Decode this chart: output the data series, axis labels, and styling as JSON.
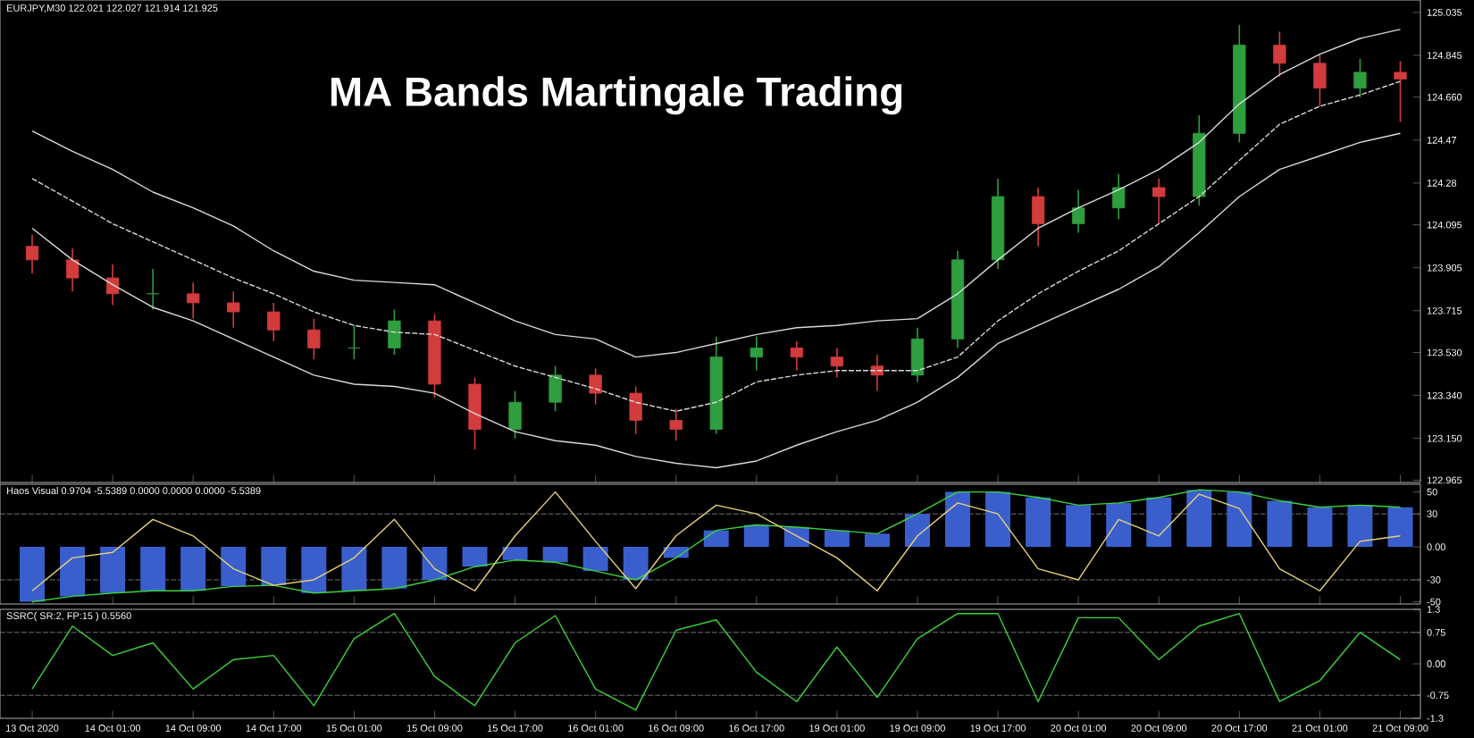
{
  "chart_data": [
    {
      "type": "candlestick",
      "title": "MA  Bands Martingale Trading",
      "annotations": [
        "EURJPY,M30 122.021 122.027 121.914 121.925"
      ],
      "categories": [
        null,
        null,
        null,
        null,
        null,
        null,
        null,
        null,
        null,
        null,
        null,
        null,
        null,
        null,
        null,
        null,
        null,
        null,
        null,
        null,
        null,
        null,
        null,
        null,
        null,
        null,
        null,
        null,
        null,
        null,
        null,
        null,
        null,
        null,
        null
      ],
      "ohlc": [
        [
          124.0,
          124.05,
          123.88,
          123.94
        ],
        [
          123.94,
          123.99,
          123.8,
          123.86
        ],
        [
          123.86,
          123.92,
          123.74,
          123.79
        ],
        [
          123.79,
          123.9,
          123.72,
          123.79
        ],
        [
          123.79,
          123.84,
          123.68,
          123.75
        ],
        [
          123.75,
          123.8,
          123.64,
          123.71
        ],
        [
          123.71,
          123.75,
          123.58,
          123.63
        ],
        [
          123.63,
          123.68,
          123.5,
          123.55
        ],
        [
          123.55,
          123.65,
          123.5,
          123.55
        ],
        [
          123.55,
          123.72,
          123.52,
          123.67
        ],
        [
          123.67,
          123.7,
          123.33,
          123.39
        ],
        [
          123.39,
          123.42,
          123.1,
          123.19
        ],
        [
          123.19,
          123.36,
          123.15,
          123.31
        ],
        [
          123.31,
          123.47,
          123.27,
          123.43
        ],
        [
          123.43,
          123.46,
          123.3,
          123.35
        ],
        [
          123.35,
          123.38,
          123.17,
          123.23
        ],
        [
          123.23,
          123.28,
          123.14,
          123.19
        ],
        [
          123.19,
          123.6,
          123.17,
          123.51
        ],
        [
          123.51,
          123.6,
          123.45,
          123.55
        ],
        [
          123.55,
          123.58,
          123.45,
          123.51
        ],
        [
          123.51,
          123.55,
          123.42,
          123.47
        ],
        [
          123.47,
          123.52,
          123.36,
          123.43
        ],
        [
          123.43,
          123.64,
          123.4,
          123.59
        ],
        [
          123.59,
          123.98,
          123.55,
          123.94
        ],
        [
          123.94,
          124.3,
          123.9,
          124.22
        ],
        [
          124.22,
          124.26,
          124.0,
          124.1
        ],
        [
          124.1,
          124.25,
          124.06,
          124.17
        ],
        [
          124.17,
          124.32,
          124.12,
          124.26
        ],
        [
          124.26,
          124.3,
          124.1,
          124.22
        ],
        [
          124.22,
          124.58,
          124.18,
          124.5
        ],
        [
          124.5,
          124.98,
          124.46,
          124.89
        ],
        [
          124.89,
          124.95,
          124.75,
          124.81
        ],
        [
          124.81,
          124.85,
          124.62,
          124.7
        ],
        [
          124.7,
          124.83,
          124.66,
          124.77
        ],
        [
          124.77,
          124.82,
          124.55,
          124.74
        ]
      ],
      "colors": [
        "#d23c3c",
        "#d23c3c",
        "#d23c3c",
        "#2e9e3e",
        "#d23c3c",
        "#d23c3c",
        "#d23c3c",
        "#d23c3c",
        "#2e9e3e",
        "#2e9e3e",
        "#d23c3c",
        "#d23c3c",
        "#2e9e3e",
        "#2e9e3e",
        "#d23c3c",
        "#d23c3c",
        "#d23c3c",
        "#2e9e3e",
        "#2e9e3e",
        "#d23c3c",
        "#d23c3c",
        "#d23c3c",
        "#2e9e3e",
        "#2e9e3e",
        "#2e9e3e",
        "#d23c3c",
        "#2e9e3e",
        "#2e9e3e",
        "#d23c3c",
        "#2e9e3e",
        "#2e9e3e",
        "#d23c3c",
        "#d23c3c",
        "#2e9e3e",
        "#d23c3c"
      ],
      "series": [
        {
          "type": "line",
          "color": "#d9d9d9",
          "values": [
            124.51,
            124.42,
            124.34,
            124.24,
            124.17,
            124.09,
            123.98,
            123.89,
            123.85,
            123.84,
            123.83,
            123.75,
            123.67,
            123.61,
            123.59,
            123.51,
            123.53,
            123.57,
            123.61,
            123.64,
            123.65,
            123.67,
            123.68,
            123.79,
            123.94,
            124.08,
            124.17,
            124.25,
            124.34,
            124.46,
            124.63,
            124.76,
            124.85,
            124.92,
            124.96
          ]
        },
        {
          "type": "line",
          "color": "#d9d9d9",
          "line_style": "dashed",
          "values": [
            124.3,
            124.2,
            124.1,
            124.02,
            123.94,
            123.86,
            123.79,
            123.71,
            123.65,
            123.62,
            123.61,
            123.54,
            123.47,
            123.42,
            123.37,
            123.31,
            123.27,
            123.31,
            123.4,
            123.43,
            123.45,
            123.45,
            123.45,
            123.51,
            123.67,
            123.79,
            123.89,
            123.98,
            124.1,
            124.22,
            124.38,
            124.54,
            124.62,
            124.67,
            124.73
          ]
        },
        {
          "type": "line",
          "color": "#d9d9d9",
          "values": [
            124.08,
            123.94,
            123.83,
            123.73,
            123.67,
            123.59,
            123.51,
            123.43,
            123.39,
            123.38,
            123.35,
            123.26,
            123.18,
            123.14,
            123.12,
            123.07,
            123.04,
            123.02,
            123.05,
            123.12,
            123.18,
            123.23,
            123.31,
            123.42,
            123.57,
            123.65,
            123.73,
            123.81,
            123.91,
            124.06,
            124.22,
            124.34,
            124.4,
            124.46,
            124.5
          ]
        }
      ],
      "ylim": [
        122.955,
        125.09
      ],
      "yticks": [
        125.035,
        124.845,
        {
          "value": 124.66,
          "label": "124.660"
        },
        124.47,
        124.28,
        124.095,
        123.905,
        123.715,
        {
          "value": 123.53,
          "label": "123.530"
        },
        {
          "value": 123.34,
          "label": "123.340"
        },
        {
          "value": 123.15,
          "label": "123.150"
        },
        122.965
      ],
      "tick_labels": "y"
    },
    {
      "type": "bar",
      "annotations": [
        "Haos Visual 0.9704 -5.5389 0.0000 0.0000 0.0000 -5.5389"
      ],
      "categories": [
        null,
        null,
        null,
        null,
        null,
        null,
        null,
        null,
        null,
        null,
        null,
        null,
        null,
        null,
        null,
        null,
        null,
        null,
        null,
        null,
        null,
        null,
        null,
        null,
        null,
        null,
        null,
        null,
        null,
        null,
        null,
        null,
        null,
        null,
        null
      ],
      "series": [
        {
          "color": "#3a5fcd",
          "values": [
            -50,
            -45,
            -42,
            -40,
            -40,
            -36,
            -35,
            -42,
            -40,
            -38,
            -30,
            -18,
            -12,
            -14,
            -22,
            -30,
            -10,
            15,
            20,
            18,
            15,
            12,
            30,
            50,
            50,
            45,
            38,
            40,
            45,
            52,
            50,
            42,
            36,
            38,
            36
          ]
        },
        {
          "type": "line",
          "color": "#3cd23c",
          "values": [
            -50,
            -45,
            -42,
            -40,
            -40,
            -36,
            -35,
            -42,
            -40,
            -38,
            -30,
            -18,
            -12,
            -14,
            -22,
            -30,
            -10,
            15,
            20,
            18,
            15,
            12,
            30,
            50,
            50,
            45,
            38,
            40,
            45,
            52,
            50,
            42,
            36,
            38,
            36
          ]
        },
        {
          "type": "line",
          "color": "#e6d278",
          "values": [
            -40,
            -10,
            -5,
            25,
            10,
            -20,
            -35,
            -30,
            -10,
            25,
            -20,
            -40,
            10,
            50,
            5,
            -38,
            10,
            38,
            30,
            10,
            -10,
            -40,
            10,
            40,
            30,
            -20,
            -30,
            25,
            10,
            48,
            35,
            -20,
            -40,
            5,
            10
          ]
        }
      ],
      "ylim": [
        -52,
        57
      ],
      "yticks": [
        50,
        30,
        {
          "value": 0,
          "label": "0.00"
        },
        -30,
        -50
      ],
      "ref_lines": [
        {
          "axis": "y",
          "value": 30,
          "color": "#8c8c8c",
          "line_style": "dashed"
        },
        {
          "axis": "y",
          "value": -30,
          "color": "#8c8c8c",
          "line_style": "dashed"
        }
      ],
      "tick_labels": "y"
    },
    {
      "type": "line",
      "annotations": [
        "SSRC( SR:2, FP:15 ) 0.5560"
      ],
      "categories": [
        "13 Oct 2020",
        null,
        "14 Oct 01:00",
        null,
        "14 Oct 09:00",
        null,
        "14 Oct 17:00",
        null,
        "15 Oct 01:00",
        null,
        "15 Oct 09:00",
        null,
        "15 Oct 17:00",
        null,
        "16 Oct 01:00",
        null,
        "16 Oct 09:00",
        null,
        "16 Oct 17:00",
        null,
        "19 Oct 01:00",
        null,
        "19 Oct 09:00",
        null,
        "19 Oct 17:00",
        null,
        "20 Oct 01:00",
        null,
        "20 Oct 09:00",
        null,
        "20 Oct 17:00",
        null,
        "21 Oct 01:00",
        null,
        "21 Oct 09:00"
      ],
      "series": [
        {
          "color": "#3cd23c",
          "values": [
            -0.6,
            0.9,
            0.2,
            0.5,
            -0.6,
            0.1,
            0.2,
            -1.0,
            0.6,
            1.2,
            -0.3,
            -1.0,
            0.5,
            1.15,
            -0.6,
            -1.1,
            0.8,
            1.05,
            -0.2,
            -0.9,
            0.4,
            -0.8,
            0.6,
            1.2,
            1.2,
            -0.9,
            1.1,
            1.1,
            0.1,
            0.9,
            1.2,
            -0.9,
            -0.4,
            0.75,
            0.1
          ]
        }
      ],
      "ylim": [
        -1.3,
        1.3
      ],
      "yticks": [
        1.3,
        0.75,
        {
          "value": 0,
          "label": "0.00"
        },
        -0.75,
        -1.3
      ],
      "ref_lines": [
        {
          "axis": "y",
          "value": 0.75,
          "color": "#8c8c8c",
          "line_style": "dashed"
        },
        {
          "axis": "y",
          "value": -0.75,
          "color": "#8c8c8c",
          "line_style": "dashed"
        }
      ]
    }
  ]
}
